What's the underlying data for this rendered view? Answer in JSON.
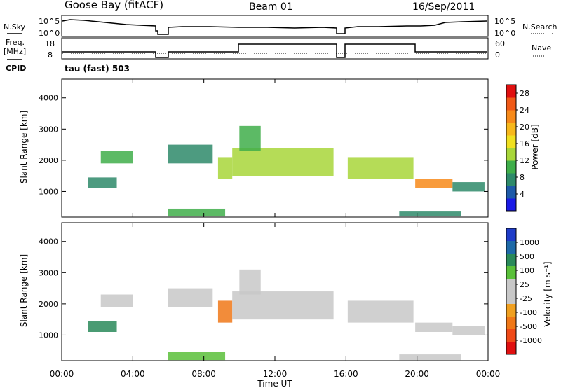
{
  "header": {
    "station": "Goose Bay (fitACF)",
    "beam": "Beam 01",
    "date": "16/Sep/2011"
  },
  "params_panel": {
    "left_label_top": "N.Sky",
    "left_label_bottom_1": "Freq.",
    "left_label_bottom_2": "[MHz]",
    "cpid_label": "CPID",
    "right_label_top": "N.Search",
    "right_label_bottom": "Nave",
    "noise_ticks": [
      "10^5",
      "10^0"
    ],
    "noise_right_ticks": [
      "10^5",
      "10^0"
    ],
    "freq_ticks": [
      "18",
      "8"
    ],
    "nave_ticks": [
      "60",
      "0"
    ],
    "cpid_text": "tau (fast) 503"
  },
  "colors": {
    "power_scale": [
      "#1a1ae6",
      "#1e5aa8",
      "#2e8a6a",
      "#3fae4a",
      "#a8d63a",
      "#f0e020",
      "#f7b81c",
      "#f78a1a",
      "#f05a18",
      "#e01010"
    ],
    "velocity_scale": [
      "#1e3cc8",
      "#1e6aa8",
      "#2a8a5a",
      "#5ac03a",
      "#c8c8c8",
      "#c8c8c8",
      "#f0a020",
      "#f07818",
      "#f04a18",
      "#e01010"
    ]
  },
  "chart_data": [
    {
      "type": "heatmap",
      "title": "Power",
      "ylabel": "Slant Range [km]",
      "ylim": [
        180,
        4600
      ],
      "yticks": [
        "1000",
        "2000",
        "3000",
        "4000"
      ],
      "colorbar": {
        "label": "Power [dB]",
        "ticks": [
          "4",
          "8",
          "12",
          "16",
          "20",
          "24",
          "28"
        ],
        "range": [
          0,
          30
        ]
      },
      "regions": [
        {
          "t0": 1.5,
          "t1": 3.1,
          "r0": 1100,
          "r1": 1450,
          "v": 8
        },
        {
          "t0": 2.2,
          "t1": 4.0,
          "r0": 1900,
          "r1": 2300,
          "v": 9
        },
        {
          "t0": 6.0,
          "t1": 8.5,
          "r0": 1900,
          "r1": 2500,
          "v": 7
        },
        {
          "t0": 8.8,
          "t1": 9.6,
          "r0": 1400,
          "r1": 2100,
          "v": 14
        },
        {
          "t0": 9.6,
          "t1": 15.3,
          "r0": 1500,
          "r1": 2400,
          "v": 13
        },
        {
          "t0": 10.0,
          "t1": 11.2,
          "r0": 2300,
          "r1": 3100,
          "v": 9
        },
        {
          "t0": 16.1,
          "t1": 19.8,
          "r0": 1400,
          "r1": 2100,
          "v": 12
        },
        {
          "t0": 19.9,
          "t1": 22.0,
          "r0": 1100,
          "r1": 1400,
          "v": 22
        },
        {
          "t0": 22.0,
          "t1": 23.8,
          "r0": 1000,
          "r1": 1300,
          "v": 7
        },
        {
          "t0": 6.0,
          "t1": 9.2,
          "r0": 200,
          "r1": 450,
          "v": 9
        },
        {
          "t0": 19.0,
          "t1": 22.5,
          "r0": 200,
          "r1": 380,
          "v": 7
        }
      ]
    },
    {
      "type": "heatmap",
      "title": "Velocity",
      "xlabel": "Time UT",
      "ylabel": "Slant Range [km]",
      "ylim": [
        180,
        4600
      ],
      "yticks": [
        "1000",
        "2000",
        "3000",
        "4000"
      ],
      "xticks": [
        "00:00",
        "04:00",
        "08:00",
        "12:00",
        "16:00",
        "20:00",
        "00:00"
      ],
      "xlim": [
        0,
        24
      ],
      "colorbar": {
        "label": "Velocity [m s⁻¹]",
        "ticks": [
          "1000",
          "500",
          "100",
          "25",
          "-25",
          "-100",
          "-500",
          "-1000"
        ]
      },
      "regions": [
        {
          "t0": 1.5,
          "t1": 3.1,
          "r0": 1100,
          "r1": 1450,
          "v": 100
        },
        {
          "t0": 2.2,
          "t1": 4.0,
          "r0": 1900,
          "r1": 2300,
          "v": 0
        },
        {
          "t0": 6.0,
          "t1": 8.5,
          "r0": 1900,
          "r1": 2500,
          "v": 0
        },
        {
          "t0": 8.8,
          "t1": 9.6,
          "r0": 1400,
          "r1": 2100,
          "v": -300
        },
        {
          "t0": 9.6,
          "t1": 15.3,
          "r0": 1500,
          "r1": 2400,
          "v": 0
        },
        {
          "t0": 10.0,
          "t1": 11.2,
          "r0": 2300,
          "r1": 3100,
          "v": 0
        },
        {
          "t0": 16.1,
          "t1": 19.8,
          "r0": 1400,
          "r1": 2100,
          "v": 0
        },
        {
          "t0": 19.9,
          "t1": 22.0,
          "r0": 1100,
          "r1": 1400,
          "v": 0
        },
        {
          "t0": 22.0,
          "t1": 23.8,
          "r0": 1000,
          "r1": 1300,
          "v": 0
        },
        {
          "t0": 6.0,
          "t1": 9.2,
          "r0": 200,
          "r1": 450,
          "v": 60
        },
        {
          "t0": 19.0,
          "t1": 22.5,
          "r0": 200,
          "r1": 380,
          "v": 0
        }
      ]
    }
  ]
}
